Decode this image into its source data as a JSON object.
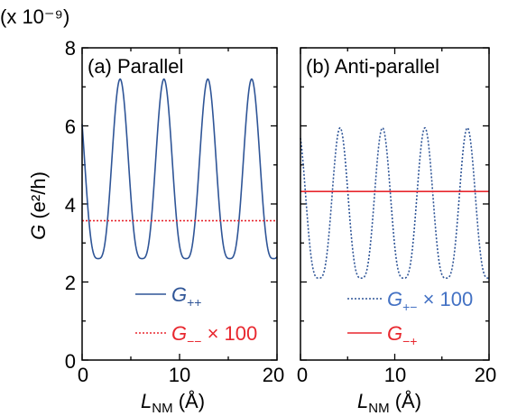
{
  "chart_data": {
    "type": "line",
    "y_multiplier_label": "(x 10⁻⁹)",
    "ylabel": {
      "symbol": "G",
      "unit": " (e²/h)"
    },
    "xlabel": {
      "symbol": "L",
      "subscript": "NM",
      "unit": " (Å)"
    },
    "ylim": [
      0,
      8
    ],
    "yticks": [
      "0",
      "2",
      "4",
      "6",
      "8"
    ],
    "xlim": [
      0,
      20
    ],
    "xticks": [
      "0",
      "10",
      "20"
    ],
    "panels": [
      {
        "label": "(a) Parallel",
        "xlim": [
          0,
          20
        ],
        "legend_position": "bottom-center",
        "series": [
          {
            "name": "G",
            "subscript": "++",
            "suffix": "",
            "color": "#2f5597",
            "style": "solid",
            "legend_text_color": "#2f5597",
            "oscillation": {
              "min": 2.6,
              "max": 7.2,
              "period_angstrom": 4.5,
              "first_peak_angstrom": 3.9,
              "x_start": 0,
              "x_end": 20
            }
          },
          {
            "name": "G",
            "subscript": "−−",
            "suffix": " × 100",
            "color": "#e8272e",
            "style": "dotted",
            "legend_text_color": "#e8272e",
            "constant": 3.57
          }
        ]
      },
      {
        "label": "(b) Anti-parallel",
        "xlim": [
          0,
          20
        ],
        "legend_position": "bottom-center",
        "series": [
          {
            "name": "G",
            "subscript": "+−",
            "suffix": " × 100",
            "color": "#2f5597",
            "style": "dotted",
            "legend_text_color": "#4472c4",
            "oscillation": {
              "min": 2.1,
              "max": 5.95,
              "period_angstrom": 4.5,
              "first_peak_angstrom": 4.2,
              "x_start": 0,
              "x_end": 20
            }
          },
          {
            "name": "G",
            "subscript": "−+",
            "suffix": "",
            "color": "#e8272e",
            "style": "solid",
            "legend_text_color": "#e8272e",
            "constant": 4.32
          }
        ]
      }
    ]
  }
}
